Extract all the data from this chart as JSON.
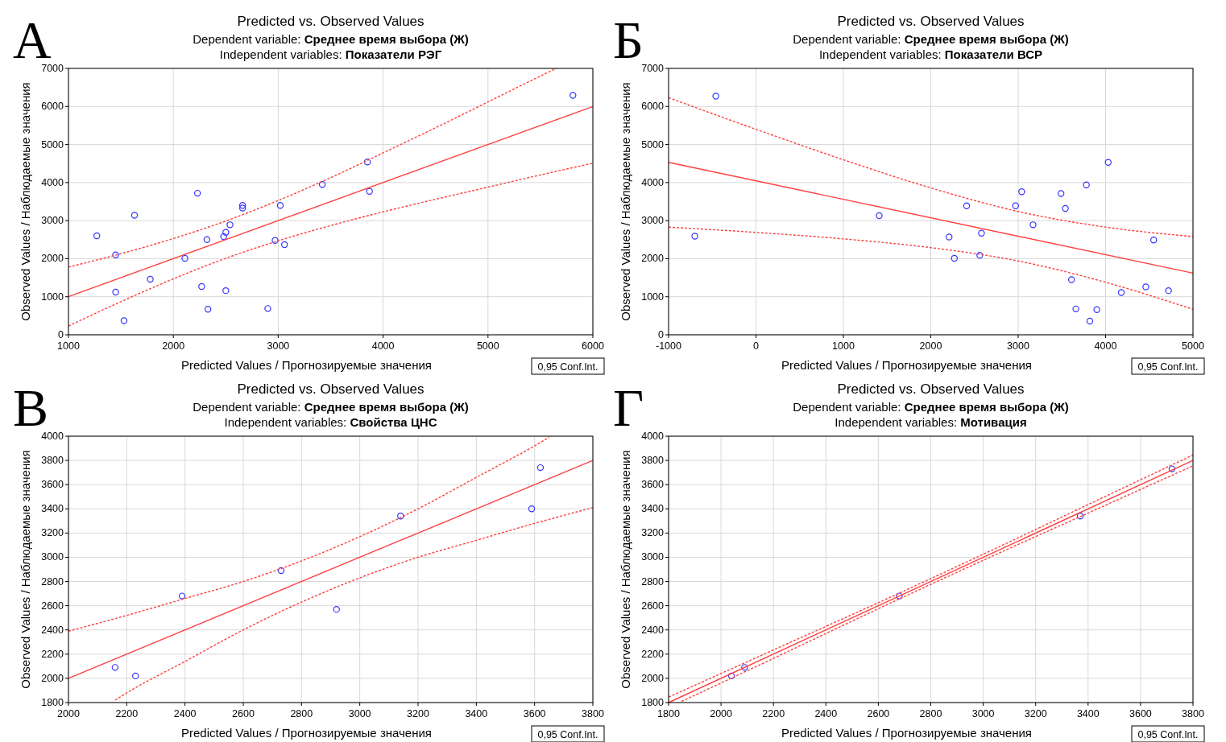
{
  "chart_data": [
    {
      "type": "scatter",
      "title": "Predicted vs. Observed Values",
      "subtitle": "Dependent variable: Среднее время выбора (Ж)\nIndependent variables: Показатели РЭГ",
      "xlabel": "Predicted Values / Прогнозируемые значения",
      "ylabel": "Observed Values / Наблюдаемые значения",
      "annotations": [
        "А",
        "0,95 Conf.Int."
      ],
      "xlim": [
        1000,
        6000
      ],
      "xticks": [
        1000,
        2000,
        3000,
        4000,
        5000,
        6000
      ],
      "ylim": [
        0,
        7000
      ],
      "yticks": [
        0,
        1000,
        2000,
        3000,
        4000,
        5000,
        6000,
        7000
      ],
      "grid": true,
      "series": [
        {
          "type": "scatter",
          "color": "#3333ff",
          "marker": "circle",
          "x": [
            1270,
            1450,
            1630,
            1450,
            1530,
            1780,
            2110,
            2230,
            2320,
            2270,
            2330,
            2480,
            2500,
            2540,
            2500,
            2660,
            2660,
            2900,
            2970,
            3020,
            3060,
            3420,
            3850,
            3870,
            5810
          ],
          "values": [
            2600,
            2100,
            3140,
            1120,
            370,
            1460,
            2010,
            3720,
            2500,
            1270,
            670,
            2580,
            2690,
            2890,
            1160,
            3330,
            3400,
            690,
            2480,
            3400,
            2370,
            3950,
            4540,
            3770,
            6290
          ]
        },
        {
          "type": "line",
          "color": "#ff4040",
          "line_style": "solid",
          "x": [
            1000,
            6000
          ],
          "values": [
            1000,
            6000
          ]
        },
        {
          "type": "line",
          "color": "#ff4040",
          "line_style": "dashed",
          "x": [
            1000,
            1500,
            2000,
            2500,
            3000,
            3500,
            4000,
            4500,
            5000,
            5500,
            5650
          ],
          "values": [
            1780,
            2130,
            2530,
            2990,
            3530,
            4130,
            4780,
            5440,
            6120,
            6800,
            7000
          ]
        },
        {
          "type": "line",
          "color": "#ff4040",
          "line_style": "dashed",
          "x": [
            1000,
            1500,
            2000,
            2500,
            3000,
            3500,
            4000,
            4500,
            5000,
            5500,
            6000
          ],
          "values": [
            230,
            870,
            1470,
            2010,
            2470,
            2870,
            3230,
            3560,
            3880,
            4200,
            4510
          ]
        }
      ]
    },
    {
      "type": "scatter",
      "title": "Predicted vs. Observed Values",
      "subtitle": "Dependent variable: Среднее время выбора (Ж)\nIndependent variables: Показатели ВСР",
      "xlabel": "Predicted Values / Прогнозируемые значения",
      "ylabel": "Observed Values / Наблюдаемые значения",
      "annotations": [
        "Б",
        "0,95 Conf.Int."
      ],
      "xlim": [
        -1000,
        5000
      ],
      "xticks": [
        -1000,
        0,
        1000,
        2000,
        3000,
        4000,
        5000
      ],
      "ylim": [
        0,
        7000
      ],
      "yticks": [
        0,
        1000,
        2000,
        3000,
        4000,
        5000,
        6000,
        7000
      ],
      "grid": true,
      "series": [
        {
          "type": "scatter",
          "color": "#3333ff",
          "marker": "circle",
          "x": [
            -700,
            -460,
            1410,
            2210,
            2270,
            2410,
            2560,
            2580,
            2970,
            3040,
            3170,
            3490,
            3540,
            3610,
            3660,
            3780,
            3820,
            3900,
            4030,
            4180,
            4460,
            4550,
            4720
          ],
          "values": [
            2590,
            6270,
            3130,
            2570,
            2010,
            3390,
            2090,
            2670,
            3390,
            3760,
            2890,
            3710,
            3320,
            1450,
            680,
            3940,
            360,
            660,
            4530,
            1110,
            1260,
            2490,
            1160
          ]
        },
        {
          "type": "line",
          "color": "#ff4040",
          "line_style": "solid",
          "x": [
            -1000,
            5000
          ],
          "values": [
            4530,
            1620
          ]
        },
        {
          "type": "line",
          "color": "#ff4040",
          "line_style": "dashed",
          "x": [
            -1000,
            0,
            1000,
            2000,
            3000,
            4000,
            5000
          ],
          "values": [
            6230,
            5400,
            4600,
            3860,
            3240,
            2830,
            2580
          ]
        },
        {
          "type": "line",
          "color": "#ff4040",
          "line_style": "dashed",
          "x": [
            -1000,
            0,
            1000,
            2000,
            3000,
            4000,
            5000
          ],
          "values": [
            2830,
            2690,
            2520,
            2290,
            1940,
            1380,
            670
          ]
        }
      ]
    },
    {
      "type": "scatter",
      "title": "Predicted vs. Observed Values",
      "subtitle": "Dependent variable: Среднее время выбора (Ж)\nIndependent variables: Свойства ЦНС",
      "xlabel": "Predicted Values / Прогнозируемые значения",
      "ylabel": "Observed Values / Наблюдаемые значения",
      "annotations": [
        "В",
        "0,95 Conf.Int."
      ],
      "xlim": [
        2000,
        3800
      ],
      "xticks": [
        2000,
        2200,
        2400,
        2600,
        2800,
        3000,
        3200,
        3400,
        3600,
        3800
      ],
      "ylim": [
        1800,
        4000
      ],
      "yticks": [
        1800,
        2000,
        2200,
        2400,
        2600,
        2800,
        3000,
        3200,
        3400,
        3600,
        3800,
        4000
      ],
      "grid": true,
      "series": [
        {
          "type": "scatter",
          "color": "#3333ff",
          "marker": "circle",
          "x": [
            2160,
            2230,
            2390,
            2730,
            2920,
            3140,
            3590,
            3620
          ],
          "values": [
            2090,
            2020,
            2680,
            2890,
            2570,
            3340,
            3400,
            3740
          ]
        },
        {
          "type": "line",
          "color": "#ff4040",
          "line_style": "solid",
          "x": [
            2000,
            3800
          ],
          "values": [
            2000,
            3800
          ]
        },
        {
          "type": "line",
          "color": "#ff4040",
          "line_style": "dashed",
          "x": [
            2000,
            2200,
            2400,
            2600,
            2800,
            3000,
            3200,
            3400,
            3600,
            3650
          ],
          "values": [
            2390,
            2520,
            2660,
            2800,
            2970,
            3170,
            3400,
            3660,
            3920,
            3990
          ]
        },
        {
          "type": "line",
          "color": "#ff4040",
          "line_style": "dashed",
          "x": [
            2160,
            2200,
            2400,
            2600,
            2800,
            3000,
            3200,
            3400,
            3600,
            3800
          ],
          "values": [
            1820,
            1880,
            2140,
            2400,
            2630,
            2830,
            3000,
            3140,
            3280,
            3410
          ]
        }
      ]
    },
    {
      "type": "scatter",
      "title": "Predicted vs. Observed Values",
      "subtitle": "Dependent variable: Среднее время выбора (Ж)\nIndependent variables: Мотивация",
      "xlabel": "Predicted Values / Прогнозируемые значения",
      "ylabel": "Observed Values / Наблюдаемые значения",
      "annotations": [
        "Г",
        "0,95 Conf.Int."
      ],
      "xlim": [
        1800,
        3800
      ],
      "xticks": [
        1800,
        2000,
        2200,
        2400,
        2600,
        2800,
        3000,
        3200,
        3400,
        3600,
        3800
      ],
      "ylim": [
        1800,
        4000
      ],
      "yticks": [
        1800,
        2000,
        2200,
        2400,
        2600,
        2800,
        3000,
        3200,
        3400,
        3600,
        3800,
        4000
      ],
      "grid": true,
      "series": [
        {
          "type": "scatter",
          "color": "#3333ff",
          "marker": "circle",
          "x": [
            2040,
            2090,
            2680,
            3370,
            3720
          ],
          "values": [
            2020,
            2090,
            2680,
            3340,
            3730
          ]
        },
        {
          "type": "line",
          "color": "#ff4040",
          "line_style": "solid",
          "x": [
            1800,
            3800
          ],
          "values": [
            1800,
            3800
          ]
        },
        {
          "type": "line",
          "color": "#ff4040",
          "line_style": "dashed",
          "x": [
            1800,
            2200,
            2600,
            3000,
            3400,
            3800
          ],
          "values": [
            1845,
            2235,
            2625,
            3025,
            3435,
            3845
          ]
        },
        {
          "type": "line",
          "color": "#ff4040",
          "line_style": "dashed",
          "x": [
            1850,
            2200,
            2600,
            3000,
            3400,
            3800
          ],
          "values": [
            1810,
            2165,
            2575,
            2975,
            3365,
            3755
          ]
        }
      ]
    }
  ]
}
